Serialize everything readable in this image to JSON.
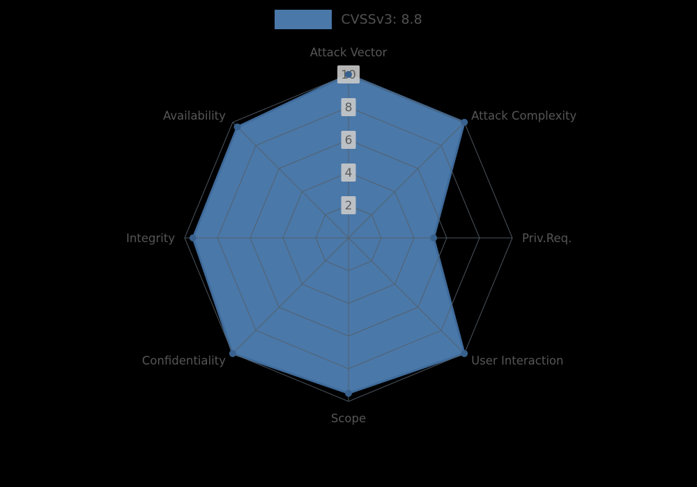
{
  "legend": {
    "label": "CVSSv3: 8.8",
    "swatch_color": "#4a78a8"
  },
  "chart_data": {
    "type": "radar",
    "title": "CVSSv3: 8.8",
    "categories": [
      "Attack Vector",
      "Attack Complexity",
      "Priv.Req.",
      "User Interaction",
      "Scope",
      "Confidentiality",
      "Integrity",
      "Availability"
    ],
    "series": [
      {
        "name": "CVSSv3: 8.8",
        "values": [
          10,
          10,
          5.2,
          10,
          9.5,
          10,
          9.5,
          9.6
        ]
      }
    ],
    "ticks": [
      2,
      4,
      6,
      8,
      10
    ],
    "max": 10,
    "grid": true,
    "legend_position": "top",
    "colors": {
      "series_fill": "#4a78a8",
      "series_stroke": "#3f6b9b",
      "dot": "#38618e",
      "grid": "#545f69",
      "tick_box": "#c9c9c9",
      "tick_text": "#5c5c5c",
      "label_text": "#565656",
      "background": "#000000"
    }
  }
}
